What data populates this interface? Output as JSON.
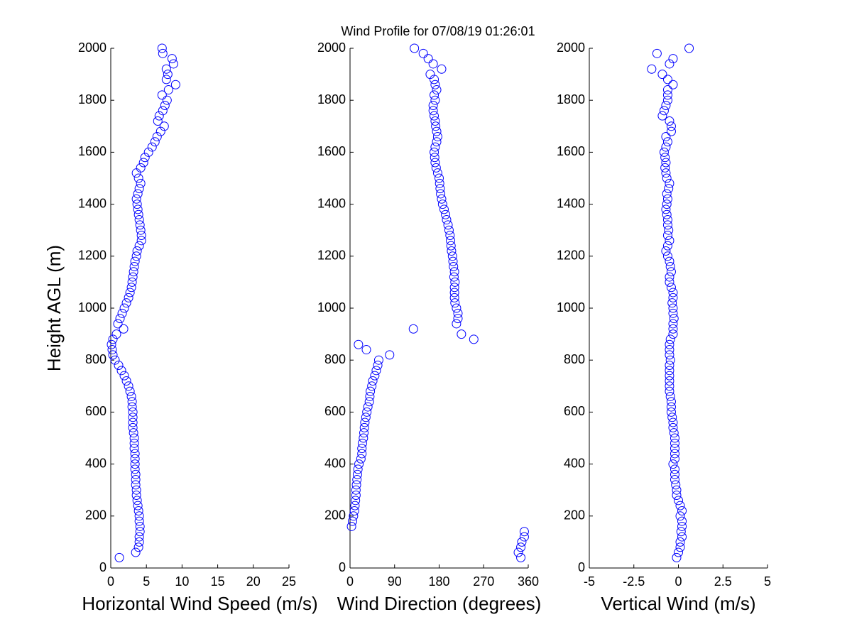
{
  "title": "Wind Profile for  07/08/19 01:26:01",
  "chart_data": [
    {
      "type": "scatter",
      "xlabel": "Horizontal Wind Speed (m/s)",
      "ylabel": "Height AGL (m)",
      "color": "#0000ff",
      "xlim": [
        0,
        25
      ],
      "xticks": [
        0,
        5,
        10,
        15,
        20,
        25
      ],
      "ylim": [
        0,
        2000
      ],
      "yticks": [
        0,
        200,
        400,
        600,
        800,
        1000,
        1200,
        1400,
        1600,
        1800,
        2000
      ],
      "x": [
        1.2,
        3.5,
        3.9,
        4.0,
        4.0,
        4.1,
        4.1,
        4.0,
        4.0,
        3.9,
        3.8,
        3.7,
        3.6,
        3.6,
        3.5,
        3.5,
        3.5,
        3.4,
        3.4,
        3.4,
        3.4,
        3.3,
        3.3,
        3.3,
        3.2,
        3.1,
        3.1,
        3.1,
        3.1,
        3.0,
        3.0,
        2.9,
        2.7,
        2.5,
        2.2,
        1.9,
        1.5,
        1.1,
        0.6,
        0.3,
        0.2,
        0.1,
        0.3,
        0.8,
        1.8,
        1.0,
        1.3,
        1.6,
        1.9,
        2.2,
        2.5,
        2.7,
        2.9,
        3.0,
        3.1,
        3.2,
        3.3,
        3.4,
        3.6,
        3.7,
        4.0,
        4.3,
        4.3,
        4.2,
        4.1,
        4.0,
        3.9,
        3.8,
        3.7,
        3.6,
        3.8,
        4.0,
        4.2,
        3.9,
        3.6,
        4.2,
        4.6,
        4.8,
        5.3,
        5.8,
        6.2,
        6.5,
        7.0,
        7.5,
        6.6,
        6.8,
        7.3,
        7.6,
        7.9,
        7.2,
        8.1,
        9.1,
        7.8,
        8.0,
        7.8,
        8.8,
        8.6,
        7.3,
        7.2
      ],
      "y": [
        40,
        60,
        80,
        100,
        120,
        140,
        160,
        180,
        200,
        220,
        240,
        260,
        280,
        300,
        320,
        340,
        360,
        380,
        400,
        420,
        440,
        460,
        480,
        500,
        520,
        540,
        560,
        580,
        600,
        620,
        640,
        660,
        680,
        700,
        720,
        740,
        760,
        780,
        800,
        820,
        840,
        860,
        880,
        900,
        920,
        940,
        960,
        980,
        1000,
        1020,
        1040,
        1060,
        1080,
        1100,
        1120,
        1140,
        1160,
        1180,
        1200,
        1220,
        1240,
        1260,
        1280,
        1300,
        1320,
        1340,
        1360,
        1380,
        1400,
        1420,
        1440,
        1460,
        1480,
        1500,
        1520,
        1540,
        1560,
        1580,
        1600,
        1620,
        1640,
        1660,
        1680,
        1700,
        1720,
        1740,
        1760,
        1780,
        1800,
        1820,
        1840,
        1860,
        1880,
        1900,
        1920,
        1940,
        1960,
        1980,
        2000
      ]
    },
    {
      "type": "scatter",
      "xlabel": "Wind Direction (degrees)",
      "color": "#0000ff",
      "xlim": [
        0,
        360
      ],
      "xticks": [
        0,
        90,
        180,
        270,
        360
      ],
      "ylim": [
        0,
        2000
      ],
      "yticks": [
        0,
        200,
        400,
        600,
        800,
        1000,
        1200,
        1400,
        1600,
        1800,
        2000
      ],
      "x": [
        345,
        340,
        345,
        347,
        352,
        352,
        3,
        5,
        7,
        9,
        10,
        11,
        12,
        12,
        13,
        14,
        15,
        16,
        18,
        22,
        24,
        24,
        25,
        27,
        28,
        29,
        30,
        32,
        34,
        36,
        39,
        40,
        41,
        44,
        46,
        50,
        53,
        56,
        58,
        80,
        33,
        17,
        250,
        225,
        128,
        215,
        218,
        218,
        215,
        212,
        211,
        211,
        211,
        212,
        210,
        211,
        209,
        208,
        207,
        205,
        204,
        203,
        202,
        200,
        198,
        195,
        193,
        190,
        187,
        185,
        183,
        182,
        181,
        180,
        177,
        174,
        172,
        171,
        170,
        172,
        175,
        177,
        175,
        173,
        172,
        170,
        168,
        168,
        172,
        170,
        175,
        172,
        170,
        162,
        185,
        168,
        158,
        148,
        130
      ],
      "y": [
        40,
        60,
        80,
        100,
        120,
        140,
        160,
        180,
        200,
        220,
        240,
        260,
        280,
        300,
        320,
        340,
        360,
        380,
        400,
        420,
        440,
        460,
        480,
        500,
        520,
        540,
        560,
        580,
        600,
        620,
        640,
        660,
        680,
        700,
        720,
        740,
        760,
        780,
        800,
        820,
        840,
        860,
        880,
        900,
        920,
        940,
        960,
        980,
        1000,
        1020,
        1040,
        1060,
        1080,
        1100,
        1120,
        1140,
        1160,
        1180,
        1200,
        1220,
        1240,
        1260,
        1280,
        1300,
        1320,
        1340,
        1360,
        1380,
        1400,
        1420,
        1440,
        1460,
        1480,
        1500,
        1520,
        1540,
        1560,
        1580,
        1600,
        1620,
        1640,
        1660,
        1680,
        1700,
        1720,
        1740,
        1760,
        1780,
        1800,
        1820,
        1840,
        1860,
        1880,
        1900,
        1920,
        1940,
        1960,
        1980,
        2000
      ]
    },
    {
      "type": "scatter",
      "xlabel": "Vertical Wind (m/s)",
      "color": "#0000ff",
      "xlim": [
        -5,
        5
      ],
      "xticks": [
        -5,
        {
          "value": -2.5,
          "label": "-2.5"
        },
        0,
        {
          "value": 2.5,
          "label": "2.5"
        },
        5
      ],
      "ylim": [
        0,
        2000
      ],
      "yticks": [
        0,
        200,
        400,
        600,
        800,
        1000,
        1200,
        1400,
        1600,
        1800,
        2000
      ],
      "x": [
        -0.1,
        0,
        0.1,
        0.1,
        0.2,
        0.15,
        0.2,
        0.2,
        0.1,
        0.2,
        0.1,
        0,
        -0.1,
        -0.1,
        -0.15,
        -0.2,
        -0.2,
        -0.2,
        -0.3,
        -0.2,
        -0.2,
        -0.2,
        -0.2,
        -0.2,
        -0.25,
        -0.3,
        -0.3,
        -0.35,
        -0.4,
        -0.4,
        -0.4,
        -0.45,
        -0.5,
        -0.5,
        -0.5,
        -0.5,
        -0.5,
        -0.5,
        -0.45,
        -0.5,
        -0.5,
        -0.5,
        -0.45,
        -0.3,
        -0.3,
        -0.3,
        -0.25,
        -0.3,
        -0.3,
        -0.35,
        -0.3,
        -0.3,
        -0.4,
        -0.5,
        -0.5,
        -0.4,
        -0.45,
        -0.5,
        -0.6,
        -0.7,
        -0.6,
        -0.5,
        -0.6,
        -0.55,
        -0.6,
        -0.6,
        -0.65,
        -0.7,
        -0.65,
        -0.6,
        -0.65,
        -0.55,
        -0.5,
        -0.65,
        -0.7,
        -0.75,
        -0.7,
        -0.75,
        -0.8,
        -0.7,
        -0.6,
        -0.7,
        -0.4,
        -0.4,
        -0.5,
        -0.9,
        -0.8,
        -0.7,
        -0.6,
        -0.6,
        -0.6,
        -0.3,
        -0.6,
        -0.9,
        -1.5,
        -0.5,
        -0.3,
        -1.2,
        0.6
      ],
      "y": [
        40,
        60,
        80,
        100,
        120,
        140,
        160,
        180,
        200,
        220,
        240,
        260,
        280,
        300,
        320,
        340,
        360,
        380,
        400,
        420,
        440,
        460,
        480,
        500,
        520,
        540,
        560,
        580,
        600,
        620,
        640,
        660,
        680,
        700,
        720,
        740,
        760,
        780,
        800,
        820,
        840,
        860,
        880,
        900,
        920,
        940,
        960,
        980,
        1000,
        1020,
        1040,
        1060,
        1080,
        1100,
        1120,
        1140,
        1160,
        1180,
        1200,
        1220,
        1240,
        1260,
        1280,
        1300,
        1320,
        1340,
        1360,
        1380,
        1400,
        1420,
        1440,
        1460,
        1480,
        1500,
        1520,
        1540,
        1560,
        1580,
        1600,
        1620,
        1640,
        1660,
        1680,
        1700,
        1720,
        1740,
        1760,
        1780,
        1800,
        1820,
        1840,
        1860,
        1880,
        1900,
        1920,
        1940,
        1960,
        1980,
        2000
      ]
    }
  ]
}
